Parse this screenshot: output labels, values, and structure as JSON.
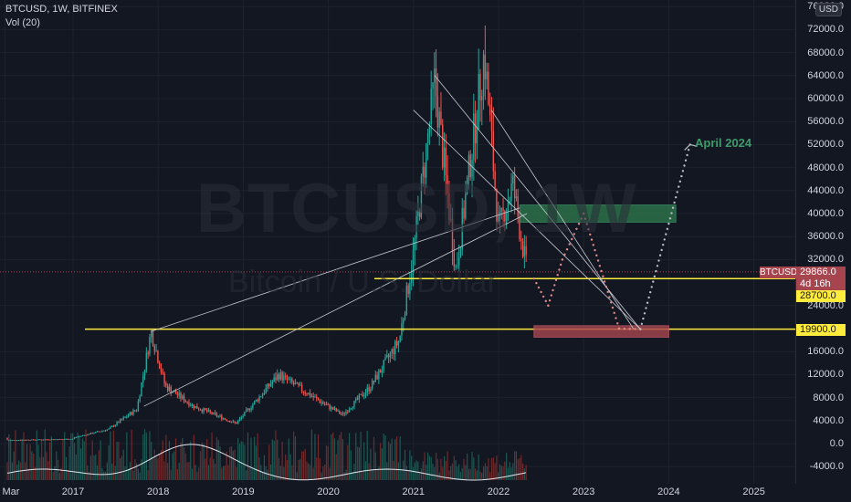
{
  "header": {
    "symbol_line": "BTCUSD, 1W, BITFINEX",
    "indicator_line": "Vol (20)"
  },
  "watermark": {
    "symbol": "BTCUSD, 1W",
    "description": "Bitcoin / U.S. Dollar"
  },
  "currency_button": "USD",
  "annotation": {
    "text": "April 2024",
    "color": "#3f9a6b"
  },
  "price_scale": {
    "labels": [
      "76000.0",
      "72000.0",
      "68000.0",
      "64000.0",
      "60000.0",
      "56000.0",
      "52000.0",
      "48000.0",
      "44000.0",
      "40000.0",
      "36000.0",
      "32000.0",
      "24000.0",
      "16000.0",
      "12000.0",
      "8000.0",
      "4000.0",
      "0.0",
      "-4000.0"
    ]
  },
  "time_axis": {
    "labels": [
      "Mar",
      "2017",
      "2018",
      "2019",
      "2020",
      "2021",
      "2022",
      "2023",
      "2024",
      "2025"
    ]
  },
  "badges": {
    "symbol_tag": "BTCUSD",
    "current_price": "29866.0",
    "countdown": "4d 16h",
    "level_upper": "28700.0",
    "level_lower": "19900.0"
  },
  "colors": {
    "background": "#131722",
    "up": "#26a69a",
    "down": "#ef5350",
    "level_line": "#ffeb3b",
    "demand_zone": "#a7454f",
    "supply_zone": "#2e7d4f",
    "price_badge": "#a7454f"
  },
  "chart_data": {
    "type": "candlestick",
    "symbol": "BTCUSD",
    "interval": "1W",
    "exchange": "BITFINEX",
    "ylim": [
      -4000,
      76000
    ],
    "current_price": 29866,
    "horizontal_levels": [
      28700,
      19900
    ],
    "zones": [
      {
        "name": "supply",
        "low": 38500,
        "high": 41500,
        "from": "2022-04",
        "to": "2024-02"
      },
      {
        "name": "demand",
        "low": 18500,
        "high": 20500,
        "from": "2022-06",
        "to": "2024-01"
      }
    ],
    "price_path": [
      {
        "date": "2017-01",
        "close": 1000
      },
      {
        "date": "2017-06",
        "close": 2500
      },
      {
        "date": "2017-10",
        "close": 6000
      },
      {
        "date": "2017-12",
        "close": 19500
      },
      {
        "date": "2018-02",
        "close": 10000
      },
      {
        "date": "2018-06",
        "close": 6500
      },
      {
        "date": "2018-11",
        "close": 4000
      },
      {
        "date": "2018-12",
        "close": 3500
      },
      {
        "date": "2019-06",
        "close": 12000
      },
      {
        "date": "2019-12",
        "close": 7200
      },
      {
        "date": "2020-03",
        "close": 5000
      },
      {
        "date": "2020-07",
        "close": 10000
      },
      {
        "date": "2020-11",
        "close": 18000
      },
      {
        "date": "2021-01",
        "close": 33000
      },
      {
        "date": "2021-04",
        "close": 63000
      },
      {
        "date": "2021-07",
        "close": 30000
      },
      {
        "date": "2021-11",
        "close": 68000
      },
      {
        "date": "2022-01",
        "close": 37000
      },
      {
        "date": "2022-03",
        "close": 45000
      },
      {
        "date": "2022-05",
        "close": 29866
      }
    ],
    "projection": [
      {
        "date": "2022-06",
        "close": 28700
      },
      {
        "date": "2022-08",
        "close": 24000
      },
      {
        "date": "2022-10",
        "close": 32000
      },
      {
        "date": "2023-01",
        "close": 40000
      },
      {
        "date": "2023-06",
        "close": 20000
      },
      {
        "date": "2023-09",
        "close": 19900
      },
      {
        "date": "2024-04",
        "close": 52000
      }
    ]
  }
}
